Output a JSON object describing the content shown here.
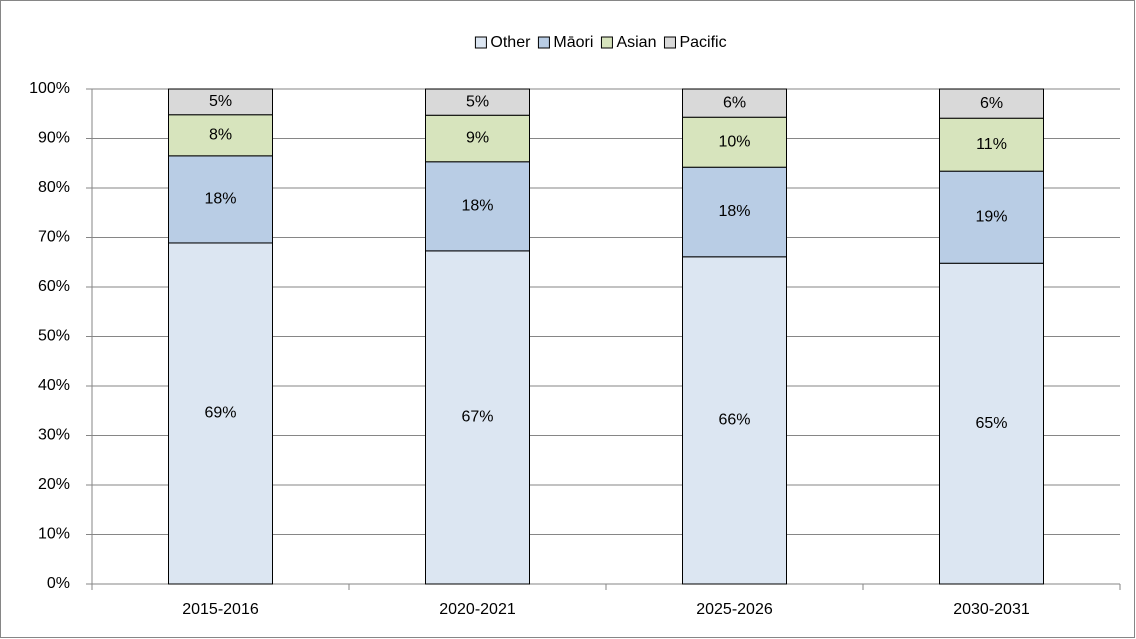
{
  "chart_data": {
    "type": "stacked_bar",
    "categories": [
      "2015-2016",
      "2020-2021",
      "2025-2026",
      "2030-2031"
    ],
    "series": [
      {
        "name": "Other",
        "color": "#dce6f2",
        "values": [
          68.9,
          67.3,
          66.1,
          64.8
        ],
        "value_labels": [
          "69%",
          "67%",
          "66%",
          "65%"
        ]
      },
      {
        "name": "Māori",
        "color": "#b9cde5",
        "values": [
          17.6,
          18.0,
          18.1,
          18.6
        ],
        "value_labels": [
          "18%",
          "18%",
          "18%",
          "19%"
        ]
      },
      {
        "name": "Asian",
        "color": "#d7e4bd",
        "values": [
          8.3,
          9.4,
          10.1,
          10.7
        ],
        "value_labels": [
          "8%",
          "9%",
          "10%",
          "11%"
        ]
      },
      {
        "name": "Pacific",
        "color": "#d9d9d9",
        "values": [
          5.2,
          5.3,
          5.7,
          5.9
        ],
        "value_labels": [
          "5%",
          "5%",
          "6%",
          "6%"
        ]
      }
    ],
    "ylim": [
      0,
      100
    ],
    "yticks": [
      {
        "value": 0,
        "label": "0%"
      },
      {
        "value": 10,
        "label": "10%"
      },
      {
        "value": 20,
        "label": "20%"
      },
      {
        "value": 30,
        "label": "30%"
      },
      {
        "value": 40,
        "label": "40%"
      },
      {
        "value": 50,
        "label": "50%"
      },
      {
        "value": 60,
        "label": "60%"
      },
      {
        "value": 70,
        "label": "70%"
      },
      {
        "value": 80,
        "label": "80%"
      },
      {
        "value": 90,
        "label": "90%"
      },
      {
        "value": 100,
        "label": "100%"
      }
    ],
    "grid": true,
    "legend": "top"
  }
}
